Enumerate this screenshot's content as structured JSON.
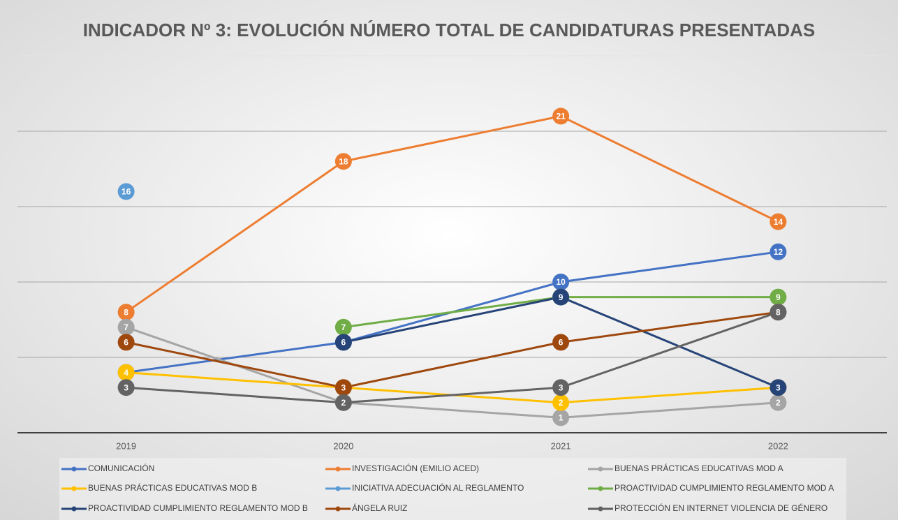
{
  "chart_data": {
    "type": "line",
    "title": "INDICADOR Nº 3: EVOLUCIÓN NÚMERO TOTAL DE CANDIDATURAS PRESENTADAS",
    "categories": [
      "2019",
      "2020",
      "2021",
      "2022"
    ],
    "ylim": [
      0,
      25
    ],
    "yticks": [
      0,
      5,
      10,
      15,
      20,
      25
    ],
    "grid": true,
    "legend": "bottom",
    "series": [
      {
        "name": "COMUNICACIÓN",
        "color": "#4472c4",
        "values": [
          4,
          6,
          10,
          12
        ]
      },
      {
        "name": "INVESTIGACIÓN  (EMILIO ACED)",
        "color": "#ed7d31",
        "values": [
          8,
          18,
          21,
          14
        ]
      },
      {
        "name": "BUENAS PRÁCTICAS EDUCATIVAS MOD A",
        "color": "#a5a5a5",
        "values": [
          7,
          2,
          1,
          2
        ]
      },
      {
        "name": "BUENAS PRÁCTICAS EDUCATIVAS MOD B",
        "color": "#ffc000",
        "values": [
          4,
          3,
          2,
          3
        ]
      },
      {
        "name": "INICIATIVA ADECUACIÓN AL REGLAMENTO",
        "color": "#5b9bd5",
        "values": [
          16,
          null,
          null,
          null
        ]
      },
      {
        "name": "PROACTIVIDAD CUMPLIMIENTO REGLAMENTO MOD A",
        "color": "#70ad47",
        "values": [
          null,
          7,
          9,
          9
        ]
      },
      {
        "name": "PROACTIVIDAD CUMPLIMIENTO REGLAMENTO MOD B",
        "color": "#264478",
        "values": [
          null,
          6,
          9,
          3
        ]
      },
      {
        "name": "ÁNGELA RUIZ",
        "color": "#9e480e",
        "values": [
          6,
          3,
          6,
          8
        ]
      },
      {
        "name": "PROTECCIÓN EN INTERNET VIOLENCIA DE GÉNERO",
        "color": "#636363",
        "values": [
          3,
          2,
          3,
          8
        ]
      }
    ]
  }
}
